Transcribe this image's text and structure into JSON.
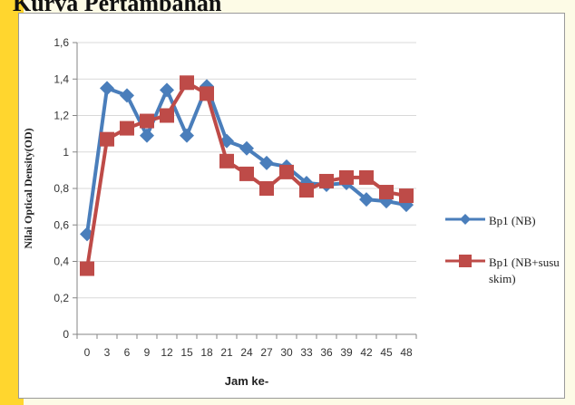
{
  "page": {
    "title": "Kurva Pertambahan"
  },
  "colors": {
    "series1": "#4a7ebb",
    "series2": "#be4b48",
    "grid": "#d9d9d9",
    "axis": "#868686"
  },
  "chart_data": {
    "type": "line",
    "title": "",
    "xlabel": "Jam ke-",
    "ylabel": "Nilai Optical Density(OD)",
    "ylim": [
      0,
      1.6
    ],
    "yticks": [
      "0",
      "0,2",
      "0,4",
      "0,6",
      "0,8",
      "1",
      "1,2",
      "1,4",
      "1,6"
    ],
    "categories": [
      "0",
      "3",
      "6",
      "9",
      "12",
      "15",
      "18",
      "21",
      "24",
      "27",
      "30",
      "33",
      "36",
      "39",
      "42",
      "45",
      "48"
    ],
    "grid": true,
    "legend_position": "right",
    "series": [
      {
        "name": "Bp1 (NB)",
        "marker": "diamond",
        "values": [
          0.55,
          1.35,
          1.31,
          1.09,
          1.34,
          1.09,
          1.36,
          1.06,
          1.02,
          0.94,
          0.92,
          0.83,
          0.82,
          0.83,
          0.74,
          0.73,
          0.71
        ]
      },
      {
        "name": "Bp1 (NB+susu skim)",
        "marker": "square",
        "values": [
          0.36,
          1.07,
          1.13,
          1.17,
          1.2,
          1.38,
          1.32,
          0.95,
          0.88,
          0.8,
          0.89,
          0.79,
          0.84,
          0.86,
          0.86,
          0.78,
          0.76
        ]
      }
    ]
  }
}
